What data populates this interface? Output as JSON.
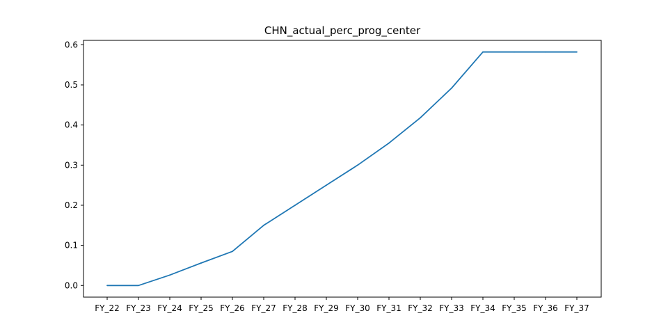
{
  "chart_data": {
    "type": "line",
    "title": "CHN_actual_perc_prog_center",
    "xlabel": "",
    "ylabel": "",
    "categories": [
      "FY_22",
      "FY_23",
      "FY_24",
      "FY_25",
      "FY_26",
      "FY_27",
      "FY_28",
      "FY_29",
      "FY_30",
      "FY_31",
      "FY_32",
      "FY_33",
      "FY_34",
      "FY_35",
      "FY_36",
      "FY_37"
    ],
    "series": [
      {
        "values": [
          0.0,
          0.0,
          0.026,
          0.056,
          0.085,
          0.15,
          0.2,
          0.25,
          0.3,
          0.355,
          0.418,
          0.492,
          0.582,
          0.582,
          0.582,
          0.582
        ]
      }
    ],
    "ylim": [
      -0.029,
      0.611
    ],
    "yticks": [
      0.0,
      0.1,
      0.2,
      0.3,
      0.4,
      0.5,
      0.6
    ],
    "ytick_labels": [
      "0.0",
      "0.1",
      "0.2",
      "0.3",
      "0.4",
      "0.5",
      "0.6"
    ],
    "grid": false,
    "legend": "none",
    "line_color": "#1f77b4"
  }
}
